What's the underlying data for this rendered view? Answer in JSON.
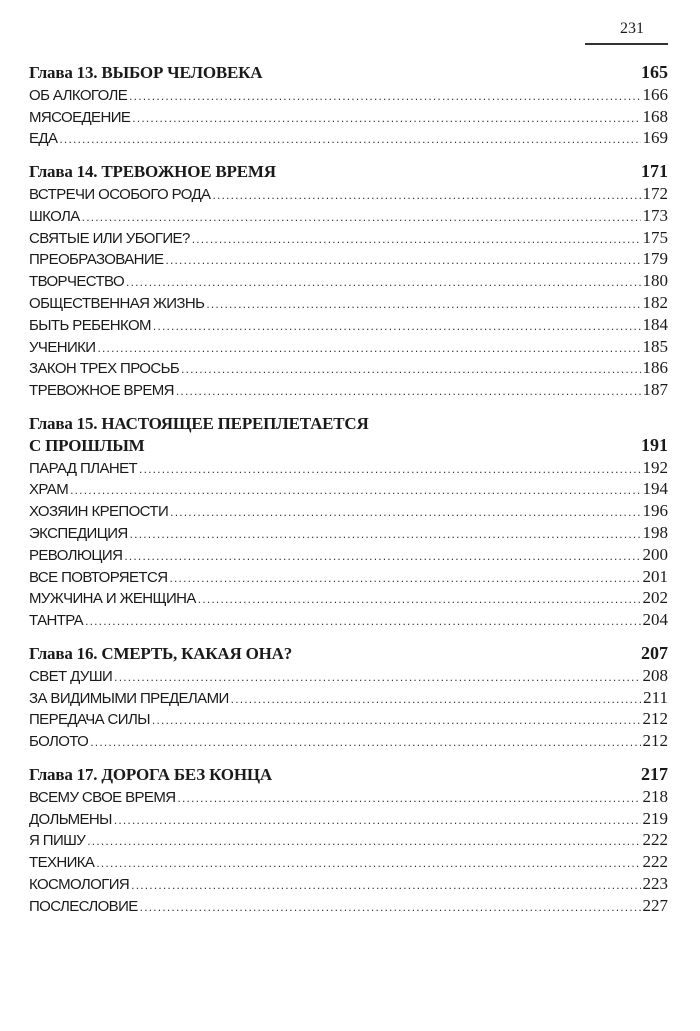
{
  "page_number": "231",
  "chapters": [
    {
      "title": "Глава 13. ВЫБОР  ЧЕЛОВЕКА",
      "page": "165",
      "items": [
        {
          "title": "ОБ АЛКОГОЛЕ",
          "page": "166"
        },
        {
          "title": "МЯСОЕДЕНИЕ",
          "page": "168"
        },
        {
          "title": "ЕДА",
          "page": "169"
        }
      ]
    },
    {
      "title": "Глава 14. ТРЕВОЖНОЕ ВРЕМЯ",
      "page": "171",
      "items": [
        {
          "title": "ВСТРЕЧИ ОСОБОГО РОДА",
          "page": "172"
        },
        {
          "title": "ШКОЛА",
          "page": "173"
        },
        {
          "title": "СВЯТЫЕ ИЛИ УБОГИЕ?",
          "page": "175"
        },
        {
          "title": "ПРЕОБРАЗОВАНИЕ",
          "page": "179"
        },
        {
          "title": "ТВОРЧЕСТВО",
          "page": "180"
        },
        {
          "title": "ОБЩЕСТВЕННАЯ ЖИЗНЬ",
          "page": "182"
        },
        {
          "title": "БЫТЬ РЕБЕНКОМ",
          "page": "184"
        },
        {
          "title": "УЧЕНИКИ",
          "page": "185"
        },
        {
          "title": "ЗАКОН ТРЕХ ПРОСЬБ",
          "page": "186"
        },
        {
          "title": "ТРЕВОЖНОЕ ВРЕМЯ",
          "page": "187"
        }
      ]
    },
    {
      "title": "Глава 15. НАСТОЯЩЕЕ  ПЕРЕПЛЕТАЕТСЯ",
      "title2": "С ПРОШЛЫМ",
      "page": "191",
      "items": [
        {
          "title": "ПАРАД ПЛАНЕТ",
          "page": "192"
        },
        {
          "title": "ХРАМ",
          "page": "194"
        },
        {
          "title": "ХОЗЯИН КРЕПОСТИ",
          "page": "196"
        },
        {
          "title": "ЭКСПЕДИЦИЯ",
          "page": "198"
        },
        {
          "title": "РЕВОЛЮЦИЯ",
          "page": "200"
        },
        {
          "title": "ВСЕ ПОВТОРЯЕТСЯ",
          "page": "201"
        },
        {
          "title": "МУЖЧИНА И ЖЕНЩИНА",
          "page": "202"
        },
        {
          "title": "ТАНТРА",
          "page": "204"
        }
      ]
    },
    {
      "title": "Глава 16. СМЕРТЬ,  КАКАЯ ОНА?",
      "page": "207",
      "items": [
        {
          "title": "СВЕТ ДУШИ",
          "page": "208"
        },
        {
          "title": "ЗА ВИДИМЫМИ ПРЕДЕЛАМИ",
          "page": "211"
        },
        {
          "title": "ПЕРЕДАЧА СИЛЫ",
          "page": "212"
        },
        {
          "title": "БОЛОТО",
          "page": "212"
        }
      ]
    },
    {
      "title": "Глава 17. ДОРОГА  БЕЗ КОНЦА",
      "page": "217",
      "items": [
        {
          "title": "ВСЕМУ СВОЕ ВРЕМЯ",
          "page": "218"
        },
        {
          "title": "ДОЛЬМЕНЫ",
          "page": "219"
        },
        {
          "title": "Я ПИШУ",
          "page": "222"
        },
        {
          "title": "ТЕХНИКА",
          "page": "222"
        },
        {
          "title": "КОСМОЛОГИЯ",
          "page": "223"
        },
        {
          "title": "ПОСЛЕСЛОВИЕ",
          "page": "227"
        }
      ]
    }
  ]
}
